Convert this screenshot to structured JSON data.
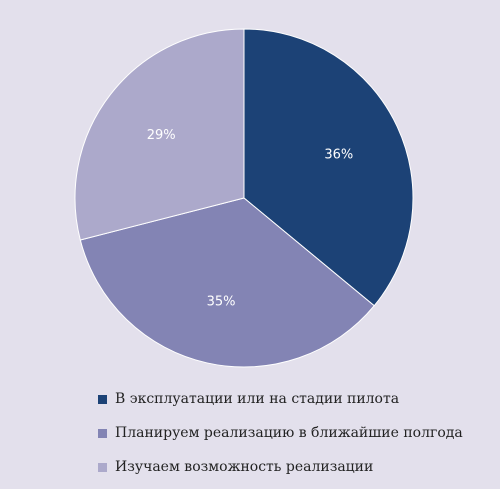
{
  "chart_data": {
    "type": "pie",
    "title": "",
    "slices": [
      {
        "label": "В эксплуатации или на стадии пилота",
        "value": 36,
        "value_label": "36%",
        "color": "#1c4276"
      },
      {
        "label": "Планируем реализацию в ближайшие полгода",
        "value": 35,
        "value_label": "35%",
        "color": "#8384b4"
      },
      {
        "label": "Изучаем возможность реализации",
        "value": 29,
        "value_label": "29%",
        "color": "#aca9cb"
      }
    ],
    "start_angle": "12 o'clock",
    "direction": "clockwise",
    "legend_position": "bottom-left",
    "edge_color": "#ffffff"
  }
}
